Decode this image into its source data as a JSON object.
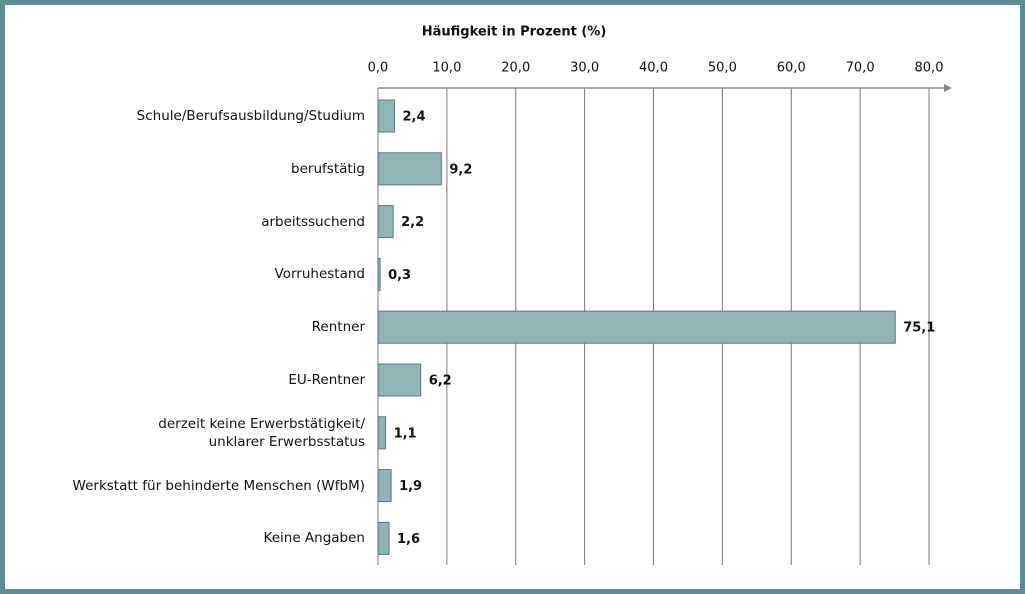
{
  "chart_data": {
    "type": "bar",
    "orientation": "horizontal",
    "title": "Häufigkeit in Prozent (%)",
    "categories": [
      "Schule/Berufsausbildung/Studium",
      "berufstätig",
      "arbeitssuchend",
      "Vorruhestand",
      "Rentner",
      "EU-Rentner",
      "derzeit keine Erwerbstätigkeit/\nunklarer Erwerbsstatus",
      "Werkstatt für behinderte Menschen (WfbM)",
      "Keine Angaben"
    ],
    "values": [
      2.4,
      9.2,
      2.2,
      0.3,
      75.1,
      6.2,
      1.1,
      1.9,
      1.6
    ],
    "value_labels": [
      "2,4",
      "9,2",
      "2,2",
      "0,3",
      "75,1",
      "6,2",
      "1,1",
      "1,9",
      "1,6"
    ],
    "color": "#8fb5b8",
    "xlim": [
      0,
      80
    ],
    "xticks": [
      {
        "value": 0,
        "label": "0,0"
      },
      {
        "value": 10,
        "label": "10,0"
      },
      {
        "value": 20,
        "label": "20,0"
      },
      {
        "value": 30,
        "label": "30,0"
      },
      {
        "value": 40,
        "label": "40,0"
      },
      {
        "value": 50,
        "label": "50,0"
      },
      {
        "value": 60,
        "label": "60,0"
      },
      {
        "value": 70,
        "label": "70,0"
      },
      {
        "value": 80,
        "label": "80,0"
      }
    ],
    "grid": true
  }
}
